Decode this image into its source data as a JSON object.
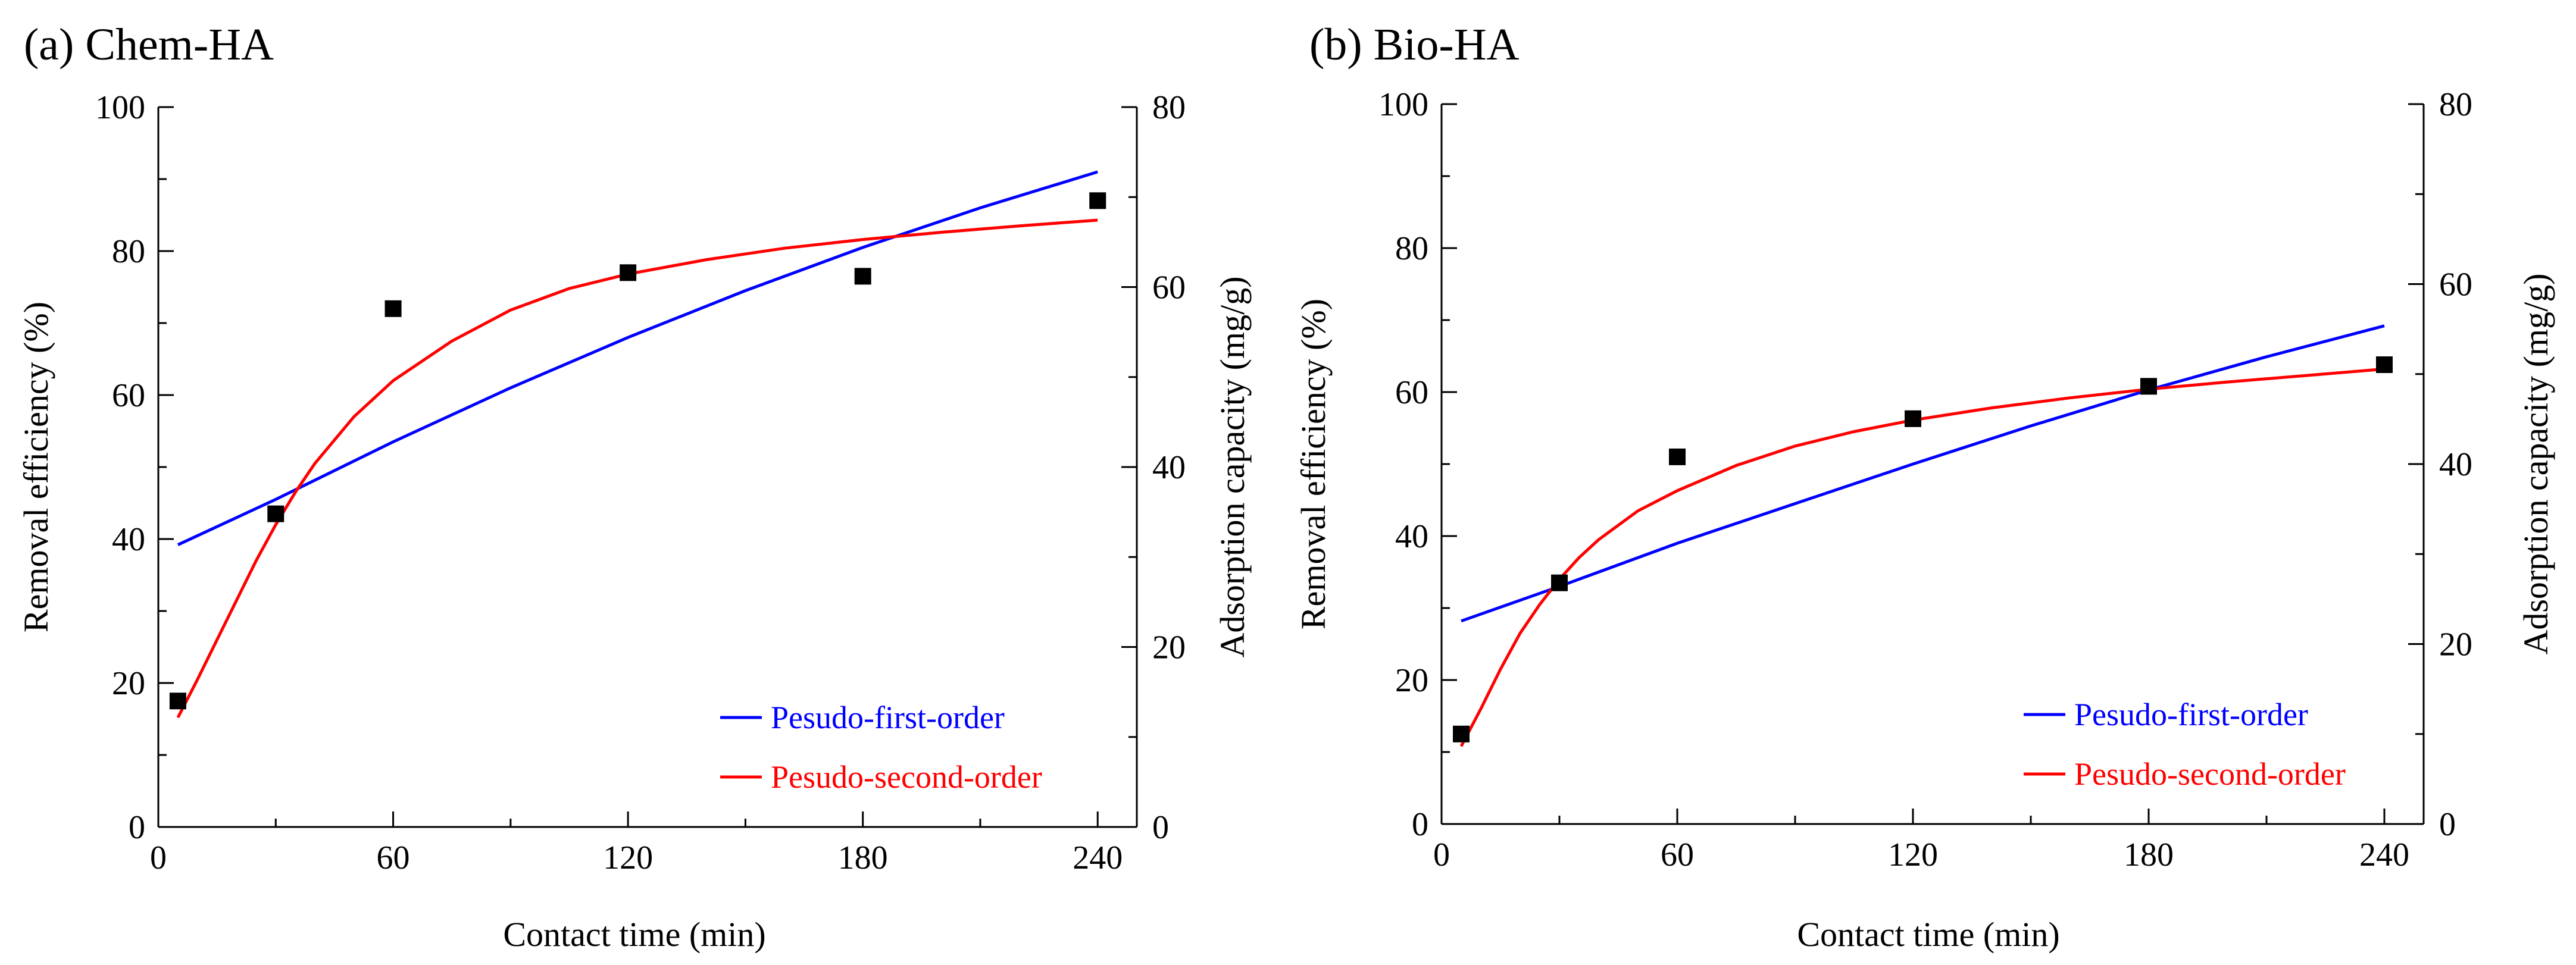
{
  "chart_data": [
    {
      "type": "scatter",
      "panel_label": "(a) Chem-HA",
      "xlabel": "Contact time (min)",
      "ylabel": "Removal efficiency (%)",
      "y2label": "Adsorption capacity (mg/g)",
      "xlim": [
        0,
        250
      ],
      "ylim": [
        0,
        100
      ],
      "y2lim": [
        0,
        80
      ],
      "xticks": [
        0,
        60,
        120,
        180,
        240
      ],
      "yticks": [
        0,
        20,
        40,
        60,
        80,
        100
      ],
      "y2ticks": [
        0,
        20,
        40,
        60,
        80
      ],
      "grid": false,
      "legend_position": "bottom-right",
      "points": {
        "x": [
          5,
          30,
          60,
          120,
          180,
          240
        ],
        "y": [
          17.5,
          43.5,
          72,
          77,
          76.5,
          87
        ]
      },
      "series": [
        {
          "name": "Pesudo-first-order",
          "color": "#0000ff",
          "x": [
            5,
            30,
            60,
            90,
            120,
            150,
            180,
            210,
            240
          ],
          "y": [
            39.2,
            45.5,
            53.5,
            61,
            68,
            74.5,
            80.5,
            86,
            91
          ]
        },
        {
          "name": "Pesudo-second-order",
          "color": "#ff0000",
          "x": [
            5,
            10,
            15,
            20,
            25,
            30,
            35,
            40,
            50,
            60,
            75,
            90,
            105,
            120,
            140,
            160,
            180,
            200,
            220,
            240
          ],
          "y": [
            15.2,
            20.5,
            26,
            31.5,
            37,
            42,
            46.5,
            50.5,
            57,
            62,
            67.5,
            71.8,
            74.8,
            76.8,
            78.8,
            80.4,
            81.6,
            82.6,
            83.5,
            84.3
          ]
        }
      ]
    },
    {
      "type": "scatter",
      "panel_label": "(b) Bio-HA",
      "xlabel": "Contact time (min)",
      "ylabel": "Removal efficiency (%)",
      "y2label": "Adsorption capacity (mg/g)",
      "xlim": [
        0,
        250
      ],
      "ylim": [
        0,
        100
      ],
      "y2lim": [
        0,
        80
      ],
      "xticks": [
        0,
        60,
        120,
        180,
        240
      ],
      "yticks": [
        0,
        20,
        40,
        60,
        80,
        100
      ],
      "y2ticks": [
        0,
        20,
        40,
        60,
        80
      ],
      "grid": false,
      "legend_position": "bottom-right",
      "points": {
        "x": [
          5,
          30,
          60,
          120,
          180,
          240
        ],
        "y": [
          12.5,
          33.5,
          51,
          56.3,
          60.8,
          63.8
        ]
      },
      "series": [
        {
          "name": "Pesudo-first-order",
          "color": "#0000ff",
          "x": [
            5,
            30,
            60,
            90,
            120,
            150,
            180,
            210,
            240
          ],
          "y": [
            28.2,
            33,
            39,
            44.5,
            50,
            55.3,
            60.3,
            64.9,
            69.2
          ]
        },
        {
          "name": "Pesudo-second-order",
          "color": "#ff0000",
          "x": [
            5,
            10,
            15,
            20,
            25,
            30,
            35,
            40,
            50,
            60,
            75,
            90,
            105,
            120,
            140,
            160,
            180,
            200,
            220,
            240
          ],
          "y": [
            10.8,
            16,
            21.5,
            26.5,
            30.5,
            34,
            37,
            39.5,
            43.5,
            46.3,
            49.8,
            52.5,
            54.5,
            56.1,
            57.8,
            59.2,
            60.4,
            61.4,
            62.3,
            63.2
          ]
        }
      ]
    }
  ]
}
